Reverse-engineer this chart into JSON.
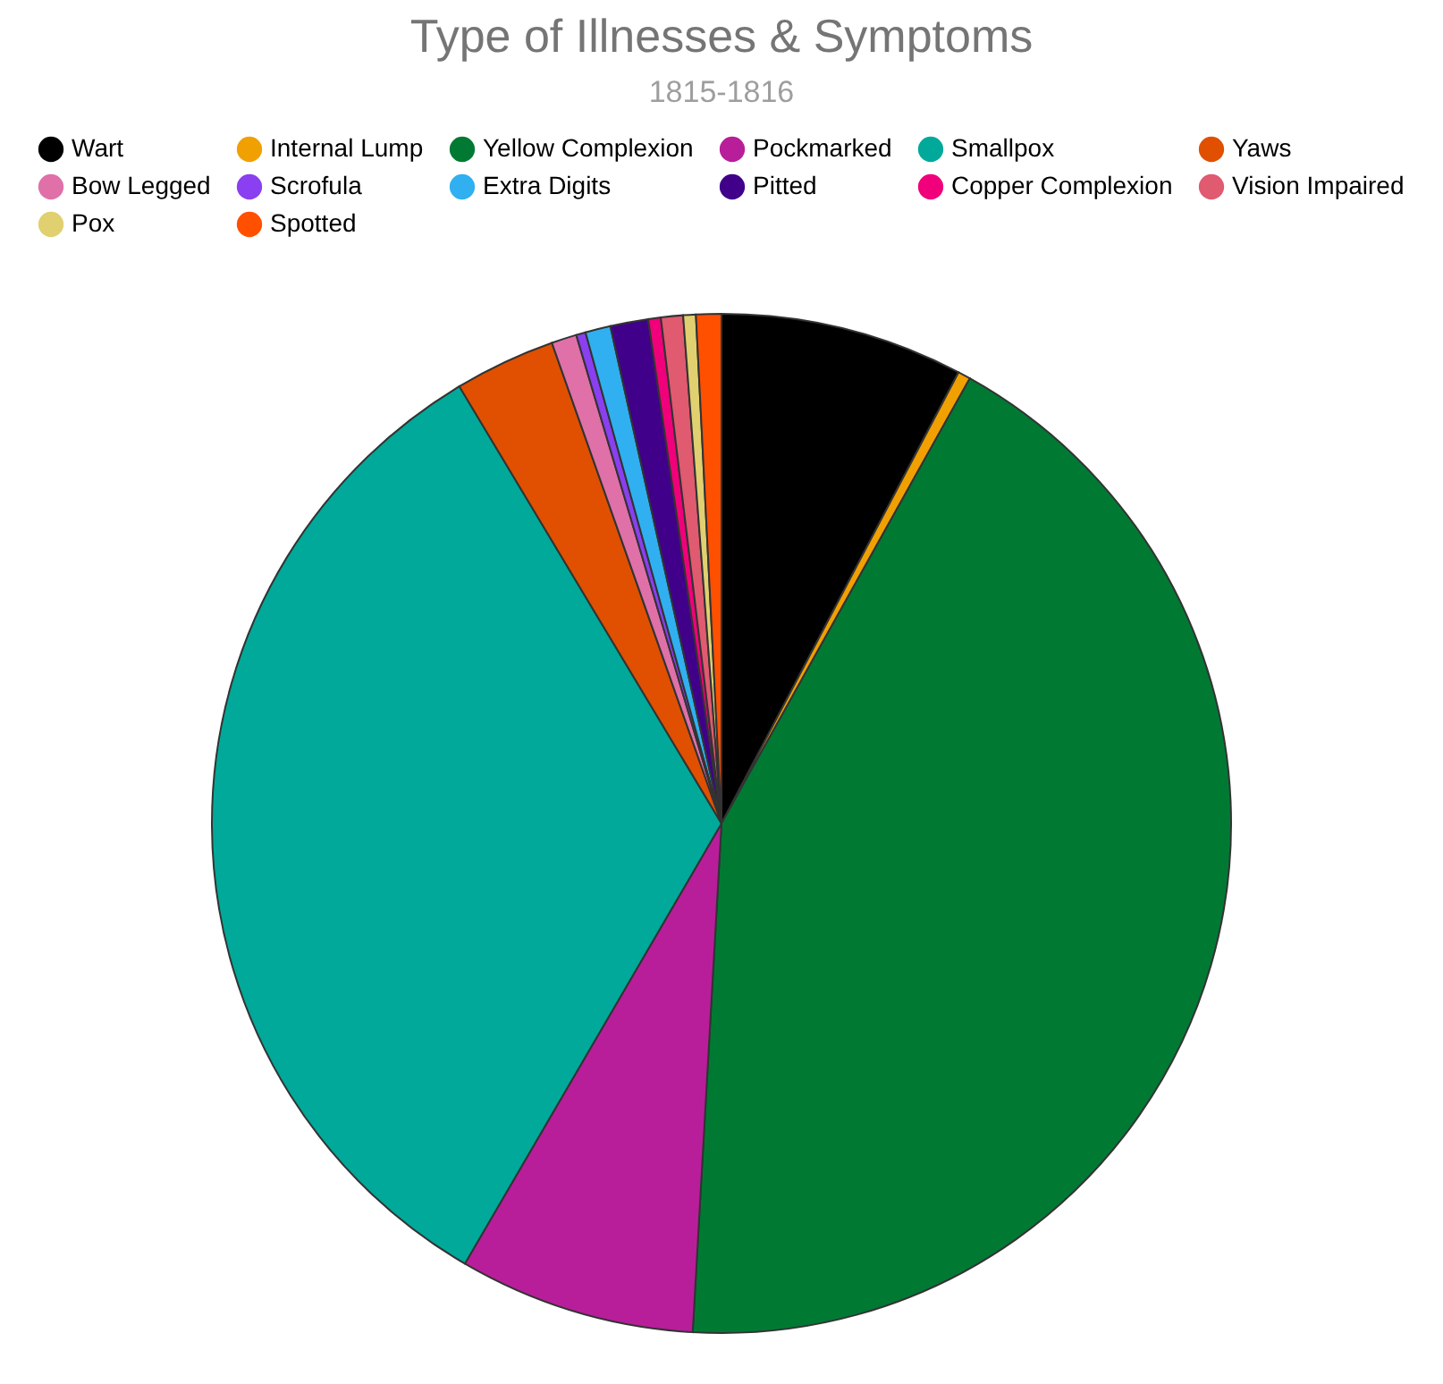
{
  "chart_data": {
    "type": "pie",
    "title": "Type of Illnesses & Symptoms",
    "subtitle": "1815-1816",
    "categories": [
      "Wart",
      "Internal Lump",
      "Yellow Complexion",
      "Pockmarked",
      "Smallpox",
      "Yaws",
      "Bow Legged",
      "Scrofula",
      "Extra Digits",
      "Pitted",
      "Copper Complexion",
      "Vision Impaired",
      "Pox",
      "Spotted"
    ],
    "values": [
      7.7,
      0.4,
      42.8,
      7.5,
      33,
      3.2,
      0.8,
      0.3,
      0.8,
      1.2,
      0.4,
      0.7,
      0.4,
      0.8
    ],
    "colors": [
      "#000000",
      "#f0a000",
      "#007a33",
      "#b81e9a",
      "#00a99a",
      "#e05000",
      "#e070a8",
      "#8a3ff0",
      "#30b0f0",
      "#40008a",
      "#f0007a",
      "#e05a70",
      "#e0d070",
      "#ff5000"
    ],
    "legend": "top"
  }
}
